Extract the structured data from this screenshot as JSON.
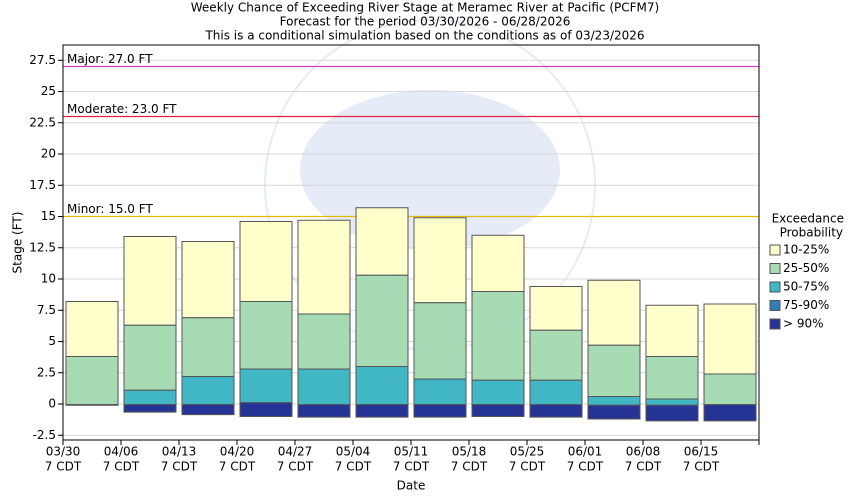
{
  "chart_data": {
    "type": "floating_stacked_bar",
    "title": [
      "Weekly Chance of Exceeding River Stage at Meramec River at Pacific (PCFM7)",
      "Forecast for the period 03/30/2026 - 06/28/2026",
      "This is a conditional simulation based on the conditions as of 03/23/2026"
    ],
    "y_label": "Stage (FT)",
    "x_label": "Date",
    "legend_title": [
      "Exceedance",
      "Probability"
    ],
    "categories": [
      "03/30",
      "04/06",
      "04/13",
      "04/20",
      "04/27",
      "05/04",
      "05/11",
      "05/18",
      "05/25",
      "06/01",
      "06/08",
      "06/15"
    ],
    "category_sublabels": [
      "7 CDT",
      "7 CDT",
      "7 CDT",
      "7 CDT",
      "7 CDT",
      "7 CDT",
      "7 CDT",
      "7 CDT",
      "7 CDT",
      "7 CDT",
      "7 CDT",
      "7 CDT"
    ],
    "base": [
      -0.1,
      -0.65,
      -0.85,
      -1.0,
      -1.05,
      -1.05,
      -1.05,
      -1.0,
      -1.05,
      -1.2,
      -1.35,
      -1.35
    ],
    "series": [
      {
        "name": "10-25%",
        "color": "#ffffcc",
        "values": [
          8.2,
          13.4,
          13.0,
          14.6,
          14.7,
          15.7,
          14.9,
          13.5,
          9.4,
          9.9,
          7.9,
          8.0
        ]
      },
      {
        "name": "25-50%",
        "color": "#a6dbb4",
        "values": [
          3.8,
          6.3,
          6.9,
          8.2,
          7.2,
          10.3,
          8.1,
          9.0,
          5.9,
          4.7,
          3.8,
          2.4
        ]
      },
      {
        "name": "50-75%",
        "color": "#41b6c4",
        "values": [
          -0.05,
          1.1,
          2.2,
          2.8,
          2.8,
          3.0,
          2.0,
          1.9,
          1.9,
          0.6,
          0.4,
          -0.05
        ]
      },
      {
        "name": "75-90%",
        "color": "#2c7fb8",
        "values": [
          -0.05,
          -0.05,
          -0.05,
          0.1,
          -0.05,
          -0.05,
          -0.05,
          -0.05,
          -0.05,
          -0.1,
          -0.1,
          -0.05
        ]
      },
      {
        "name": "> 90%",
        "color": "#253494",
        "values": [
          -0.05,
          -0.05,
          -0.05,
          0.1,
          -0.05,
          -0.05,
          -0.05,
          -0.05,
          -0.05,
          -0.1,
          -0.1,
          -0.05
        ]
      }
    ],
    "thresholds": [
      {
        "label": "Major: 27.0 FT",
        "value": 27.0,
        "color": "#cc44cc"
      },
      {
        "label": "Moderate: 23.0 FT",
        "value": 23.0,
        "color": "#dd2244"
      },
      {
        "label": "Minor: 15.0 FT",
        "value": 15.0,
        "color": "#e6b800"
      }
    ],
    "ylim": [
      -2.88,
      28.72
    ],
    "yticks": [
      -2.5,
      0.0,
      2.5,
      5.0,
      7.5,
      10.0,
      12.5,
      15.0,
      17.5,
      20.0,
      22.5,
      25.0,
      27.5
    ],
    "grid": true
  }
}
